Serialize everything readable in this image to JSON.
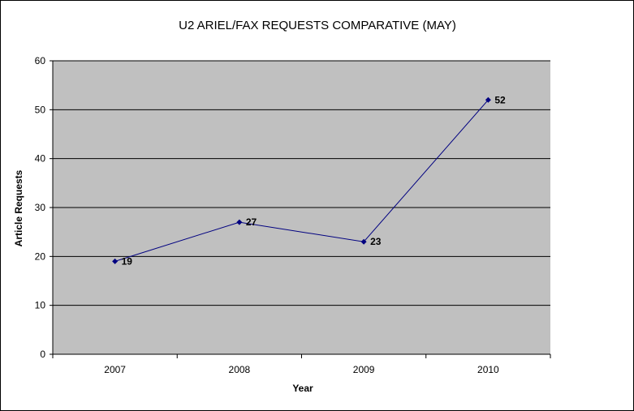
{
  "chart_data": {
    "type": "line",
    "title": "U2 ARIEL/FAX REQUESTS COMPARATIVE (MAY)",
    "xlabel": "Year",
    "ylabel": "Article Requests",
    "categories": [
      "2007",
      "2008",
      "2009",
      "2010"
    ],
    "series": [
      {
        "values": [
          19,
          27,
          23,
          52
        ]
      }
    ],
    "data_labels": [
      "19",
      "27",
      "23",
      "52"
    ],
    "y_ticks": [
      "0",
      "10",
      "20",
      "30",
      "40",
      "50",
      "60"
    ],
    "ylim": [
      0,
      60
    ],
    "grid": true,
    "legend": "none",
    "colors": {
      "plot_background": "#C0C0C0",
      "series_line": "#000080",
      "gridline": "#000000"
    }
  }
}
